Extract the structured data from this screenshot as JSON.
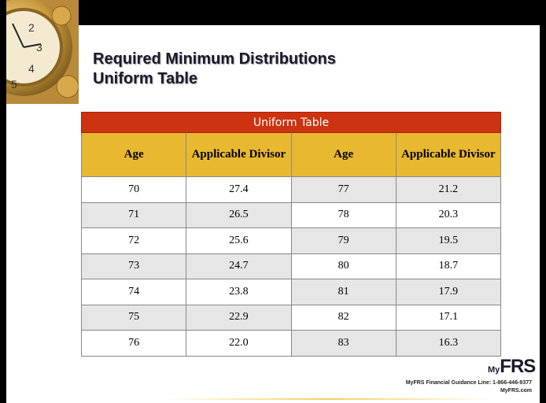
{
  "title": {
    "line1": "Required Minimum Distributions",
    "line2": "Uniform Table"
  },
  "table": {
    "caption": "Uniform Table",
    "headers": [
      "Age",
      "Applicable Divisor",
      "Age",
      "Applicable Divisor"
    ],
    "rows": [
      [
        "70",
        "27.4",
        "77",
        "21.2"
      ],
      [
        "71",
        "26.5",
        "78",
        "20.3"
      ],
      [
        "72",
        "25.6",
        "79",
        "19.5"
      ],
      [
        "73",
        "24.7",
        "80",
        "18.7"
      ],
      [
        "74",
        "23.8",
        "81",
        "17.9"
      ],
      [
        "75",
        "22.9",
        "82",
        "17.1"
      ],
      [
        "76",
        "22.0",
        "83",
        "16.3"
      ]
    ]
  },
  "footer": {
    "logo_my": "My",
    "logo_frs": "FRS",
    "line": "MyFRS Financial Guidance Line: 1-866-446-9377",
    "site": "MyFRS.com"
  }
}
